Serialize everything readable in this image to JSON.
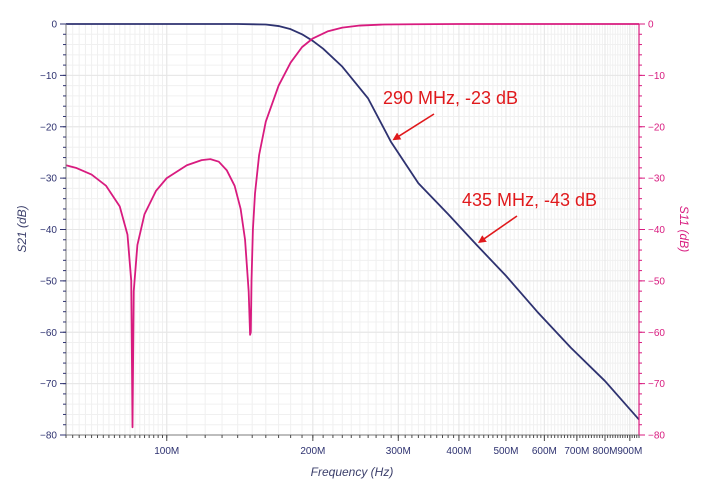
{
  "chart_data": {
    "type": "line",
    "title": "",
    "xlabel": "Frequency (Hz)",
    "ylabel_left": "S21 (dB)",
    "ylabel_right": "S11 (dB)",
    "x_scale": "log",
    "xlim": [
      62000000,
      940000000
    ],
    "ylim": [
      -80,
      0
    ],
    "grid": true,
    "x_ticks": [
      {
        "value": 100000000,
        "label": "100M"
      },
      {
        "value": 200000000,
        "label": "200M"
      },
      {
        "value": 300000000,
        "label": "300M"
      },
      {
        "value": 400000000,
        "label": "400M"
      },
      {
        "value": 500000000,
        "label": "500M"
      },
      {
        "value": 600000000,
        "label": "600M"
      },
      {
        "value": 700000000,
        "label": "700M"
      },
      {
        "value": 800000000,
        "label": "800M"
      },
      {
        "value": 900000000,
        "label": "900M"
      }
    ],
    "y_ticks": [
      {
        "value": 0,
        "label": "0"
      },
      {
        "value": -10,
        "label": "−10"
      },
      {
        "value": -20,
        "label": "−20"
      },
      {
        "value": -30,
        "label": "−30"
      },
      {
        "value": -40,
        "label": "−40"
      },
      {
        "value": -50,
        "label": "−50"
      },
      {
        "value": -60,
        "label": "−60"
      },
      {
        "value": -70,
        "label": "−70"
      },
      {
        "value": -80,
        "label": "−80"
      }
    ],
    "colors": {
      "s21": "#2e3270",
      "s11": "#d81b7f",
      "annotation": "#e0191c",
      "grid": "#e6e6e6",
      "axis": "#7b7b7b"
    },
    "series": [
      {
        "key": "s21",
        "axis": "left",
        "x": [
          62000000,
          100000000,
          140000000,
          160000000,
          170000000,
          180000000,
          190000000,
          200000000,
          210000000,
          230000000,
          260000000,
          290000000,
          330000000,
          380000000,
          435000000,
          500000000,
          580000000,
          680000000,
          800000000,
          940000000
        ],
        "values": [
          0,
          0,
          0,
          -0.1,
          -0.4,
          -1.0,
          -2.0,
          -3.3,
          -4.8,
          -8.3,
          -14.5,
          -23,
          -31,
          -37,
          -43,
          -49,
          -56,
          -63,
          -69.5,
          -77
        ]
      },
      {
        "key": "s11",
        "axis": "right",
        "x": [
          62000000,
          65000000,
          70000000,
          75000000,
          80000000,
          83000000,
          84500000,
          85000000,
          85500000,
          87000000,
          90000000,
          95000000,
          100000000,
          110000000,
          118000000,
          123000000,
          128000000,
          133000000,
          138000000,
          142000000,
          145000000,
          147500000,
          148500000,
          149000000,
          149500000,
          150500000,
          152000000,
          155000000,
          160000000,
          170000000,
          180000000,
          190000000,
          200000000,
          215000000,
          230000000,
          250000000,
          280000000,
          320000000,
          400000000,
          500000000,
          940000000
        ],
        "values": [
          -27.5,
          -28.0,
          -29.3,
          -31.5,
          -35.5,
          -41.0,
          -50.0,
          -78.5,
          -52.0,
          -43.0,
          -37.0,
          -32.5,
          -30.0,
          -27.5,
          -26.5,
          -26.3,
          -26.8,
          -28.5,
          -31.5,
          -36.0,
          -42.0,
          -52.0,
          -60.5,
          -60.0,
          -50.0,
          -40.0,
          -33.0,
          -25.5,
          -19.0,
          -12.0,
          -7.5,
          -4.5,
          -2.8,
          -1.4,
          -0.7,
          -0.3,
          -0.1,
          -0.05,
          0,
          0,
          0
        ]
      }
    ],
    "annotations": [
      {
        "text": "290 MHz, -23 dB",
        "x": 290000000,
        "y": -23
      },
      {
        "text": "435 MHz, -43 dB",
        "x": 435000000,
        "y": -43
      }
    ]
  }
}
